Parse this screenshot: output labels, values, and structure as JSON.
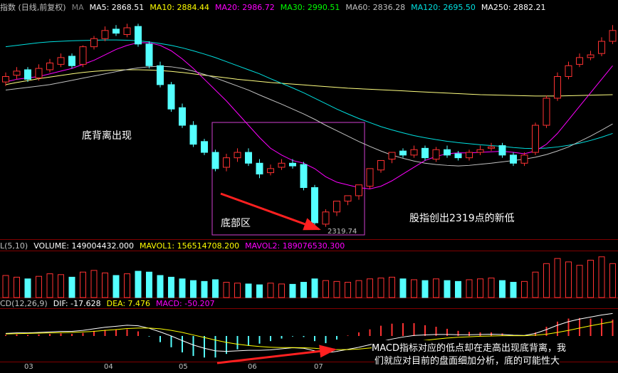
{
  "chart_data": {
    "type": "candlestick",
    "title": "指数 (日线,前复权)",
    "ma_label": "MA",
    "ma_legend": [
      {
        "text": "MA5: 2868.51",
        "color": "#ffffff"
      },
      {
        "text": "MA10: 2884.44",
        "color": "#ffff00"
      },
      {
        "text": "MA20: 2986.72",
        "color": "#ff00ff"
      },
      {
        "text": "MA30: 2990.51",
        "color": "#00ff00"
      },
      {
        "text": "MA60: 2836.28",
        "color": "#c0c0c0"
      },
      {
        "text": "MA120: 2695.50",
        "color": "#00e0e0"
      },
      {
        "text": "MA250: 2882.21",
        "color": "#ffffff"
      }
    ],
    "ylim": [
      2290,
      3110
    ],
    "up_color": "#ff3232",
    "down_color": "#54ffff",
    "candles": {
      "open": [
        2860,
        2885,
        2905,
        2875,
        2905,
        2925,
        2955,
        2925,
        2990,
        3020,
        3055,
        3035,
        3065,
        3000,
        2920,
        2850,
        2765,
        2700,
        2640,
        2600,
        2545,
        2580,
        2600,
        2560,
        2525,
        2545,
        2560,
        2555,
        2470,
        2335,
        2380,
        2420,
        2440,
        2475,
        2535,
        2575,
        2605,
        2590,
        2615,
        2575,
        2610,
        2595,
        2580,
        2600,
        2615,
        2625,
        2590,
        2560,
        2600,
        2700,
        2800,
        2880,
        2925,
        2950,
        2965,
        3010
      ],
      "high": [
        2895,
        2915,
        2915,
        2925,
        2945,
        2965,
        2965,
        2995,
        3030,
        3065,
        3070,
        3075,
        3075,
        3010,
        2935,
        2860,
        2780,
        2715,
        2650,
        2610,
        2595,
        2615,
        2615,
        2575,
        2555,
        2575,
        2575,
        2565,
        2480,
        2390,
        2395,
        2435,
        2455,
        2495,
        2555,
        2590,
        2615,
        2625,
        2625,
        2620,
        2625,
        2605,
        2610,
        2625,
        2635,
        2635,
        2600,
        2600,
        2710,
        2810,
        2895,
        2935,
        2965,
        2975,
        3025,
        3070
      ],
      "low": [
        2845,
        2870,
        2860,
        2865,
        2895,
        2915,
        2910,
        2915,
        2980,
        3010,
        3030,
        3025,
        2990,
        2910,
        2840,
        2750,
        2690,
        2620,
        2590,
        2530,
        2530,
        2565,
        2550,
        2505,
        2515,
        2535,
        2540,
        2460,
        2319.74,
        2325,
        2365,
        2405,
        2425,
        2465,
        2525,
        2560,
        2580,
        2580,
        2570,
        2565,
        2580,
        2570,
        2570,
        2590,
        2605,
        2580,
        2550,
        2550,
        2590,
        2690,
        2790,
        2870,
        2915,
        2940,
        2955,
        3000
      ],
      "close": [
        2880,
        2900,
        2870,
        2910,
        2930,
        2950,
        2920,
        2990,
        3020,
        3050,
        3040,
        3060,
        3000,
        2920,
        2850,
        2760,
        2700,
        2630,
        2600,
        2540,
        2580,
        2600,
        2560,
        2520,
        2540,
        2560,
        2550,
        2470,
        2340,
        2380,
        2420,
        2440,
        2480,
        2540,
        2570,
        2600,
        2590,
        2610,
        2580,
        2610,
        2590,
        2580,
        2600,
        2610,
        2620,
        2590,
        2560,
        2590,
        2700,
        2800,
        2880,
        2920,
        2950,
        2960,
        3010,
        3050
      ]
    },
    "ma_lines": [
      {
        "color": "#ffff80",
        "values": [
          2850,
          2858,
          2865,
          2872,
          2878,
          2884,
          2890,
          2895,
          2899,
          2902,
          2904,
          2905,
          2905,
          2904,
          2902,
          2899,
          2895,
          2890,
          2885,
          2880,
          2875,
          2870,
          2866,
          2862,
          2858,
          2855,
          2852,
          2849,
          2846,
          2843,
          2840,
          2837,
          2835,
          2833,
          2831,
          2829,
          2827,
          2825,
          2823,
          2821,
          2819,
          2817,
          2815,
          2813,
          2812,
          2811,
          2810,
          2809,
          2808,
          2808,
          2808,
          2809,
          2810,
          2811,
          2812,
          2813
        ]
      },
      {
        "color": "#00e0e0",
        "values": [
          2990,
          2995,
          3000,
          3005,
          3008,
          3010,
          3012,
          3013,
          3014,
          3015,
          3015,
          3014,
          3012,
          3008,
          3002,
          2995,
          2986,
          2975,
          2963,
          2950,
          2935,
          2920,
          2905,
          2890,
          2872,
          2855,
          2838,
          2820,
          2800,
          2780,
          2760,
          2742,
          2725,
          2710,
          2695,
          2683,
          2672,
          2662,
          2654,
          2647,
          2641,
          2636,
          2632,
          2628,
          2625,
          2622,
          2618,
          2615,
          2614,
          2616,
          2620,
          2626,
          2634,
          2644,
          2656,
          2670
        ]
      },
      {
        "color": "#c0c0c0",
        "values": [
          2830,
          2835,
          2840,
          2845,
          2850,
          2858,
          2866,
          2874,
          2882,
          2890,
          2898,
          2906,
          2912,
          2916,
          2918,
          2916,
          2910,
          2900,
          2888,
          2875,
          2860,
          2845,
          2830,
          2812,
          2795,
          2778,
          2760,
          2742,
          2722,
          2700,
          2680,
          2660,
          2640,
          2622,
          2605,
          2590,
          2578,
          2568,
          2560,
          2555,
          2552,
          2550,
          2552,
          2556,
          2560,
          2565,
          2570,
          2575,
          2582,
          2592,
          2605,
          2620,
          2640,
          2660,
          2682,
          2705
        ]
      },
      {
        "color": "#ff00ff",
        "values": [
          2860,
          2870,
          2875,
          2880,
          2890,
          2900,
          2910,
          2925,
          2940,
          2960,
          2980,
          2995,
          3005,
          3005,
          2995,
          2975,
          2945,
          2910,
          2870,
          2830,
          2790,
          2745,
          2700,
          2655,
          2615,
          2590,
          2570,
          2560,
          2540,
          2510,
          2490,
          2480,
          2470,
          2465,
          2475,
          2495,
          2520,
          2545,
          2570,
          2585,
          2595,
          2598,
          2598,
          2600,
          2602,
          2604,
          2600,
          2595,
          2605,
          2630,
          2670,
          2720,
          2770,
          2820,
          2870,
          2920
        ]
      }
    ],
    "annotations": [
      "底背离出现",
      "底部区",
      "股指创出2319点的新低",
      "MACD指标对应的低点却在走高出现底背离，我",
      "们就应对目前的盘面细加分析，底的可能性大"
    ],
    "months": [
      "03",
      "04",
      "05",
      "06",
      "07"
    ],
    "volume": {
      "legend": [
        {
          "text": "L(5,10)",
          "color": "#c0c0c0"
        },
        {
          "text": "VOLUME: 149004432.000",
          "color": "#ffffff"
        },
        {
          "text": "MAVOL1: 156514708.200",
          "color": "#ffff00"
        },
        {
          "text": "MAVOL2: 189076530.300",
          "color": "#ff00ff"
        }
      ],
      "ylim": [
        0,
        260000000
      ],
      "values": [
        130000000.0,
        120000000.0,
        110000000.0,
        125000000.0,
        140000000.0,
        135000000.0,
        120000000.0,
        150000000.0,
        160000000.0,
        145000000.0,
        130000000.0,
        140000000.0,
        155000000.0,
        150000000.0,
        130000000.0,
        120000000.0,
        110000000.0,
        100000000.0,
        95000000.0,
        105000000.0,
        90000000.0,
        85000000.0,
        80000000.0,
        75000000.0,
        85000000.0,
        80000000.0,
        78000000.0,
        90000000.0,
        110000000.0,
        100000000.0,
        95000000.0,
        90000000.0,
        100000000.0,
        110000000.0,
        115000000.0,
        120000000.0,
        110000000.0,
        105000000.0,
        100000000.0,
        110000000.0,
        100000000.0,
        95000000.0,
        105000000.0,
        110000000.0,
        115000000.0,
        100000000.0,
        90000000.0,
        95000000.0,
        150000000.0,
        200000000.0,
        230000000.0,
        210000000.0,
        190000000.0,
        220000000.0,
        240000000.0,
        200000000.0
      ]
    },
    "macd": {
      "legend": [
        {
          "text": "CD(12,26,9)",
          "color": "#c0c0c0"
        },
        {
          "text": "DIF: -17.628",
          "color": "#ffffff"
        },
        {
          "text": "DEA: 7.476",
          "color": "#ffff00"
        },
        {
          "text": "MACD: -50.207",
          "color": "#ff00ff"
        }
      ],
      "ylim": [
        -100,
        100
      ],
      "dif_color": "#ffffff",
      "dea_color": "#ffff00",
      "dif": [
        10,
        12,
        12,
        14,
        16,
        18,
        18,
        22,
        28,
        34,
        38,
        42,
        40,
        30,
        16,
        0,
        -18,
        -35,
        -48,
        -58,
        -60,
        -58,
        -56,
        -56,
        -54,
        -50,
        -46,
        -48,
        -58,
        -66,
        -60,
        -52,
        -44,
        -34,
        -22,
        -12,
        -4,
        2,
        4,
        6,
        6,
        5,
        5,
        6,
        7,
        6,
        3,
        2,
        10,
        25,
        42,
        56,
        66,
        74,
        82,
        88
      ],
      "dea": [
        8,
        9,
        10,
        11,
        12,
        13,
        14,
        16,
        18,
        22,
        25,
        29,
        31,
        31,
        28,
        22,
        14,
        4,
        -6,
        -16,
        -25,
        -32,
        -37,
        -41,
        -44,
        -45,
        -45,
        -46,
        -48,
        -52,
        -53,
        -53,
        -51,
        -47,
        -42,
        -36,
        -29,
        -23,
        -17,
        -12,
        -8,
        -5,
        -3,
        -1,
        0,
        1,
        1,
        1,
        3,
        7,
        14,
        22,
        31,
        40,
        48,
        56
      ],
      "hist": [
        4,
        6,
        4,
        6,
        8,
        10,
        8,
        12,
        20,
        24,
        26,
        26,
        18,
        -2,
        -24,
        -44,
        -64,
        -78,
        -84,
        -84,
        -70,
        -52,
        -38,
        -30,
        -20,
        -10,
        -2,
        -4,
        -20,
        -28,
        -14,
        2,
        14,
        26,
        40,
        48,
        50,
        50,
        42,
        36,
        28,
        20,
        16,
        14,
        14,
        10,
        4,
        2,
        14,
        36,
        56,
        68,
        70,
        68,
        68,
        64
      ]
    }
  }
}
